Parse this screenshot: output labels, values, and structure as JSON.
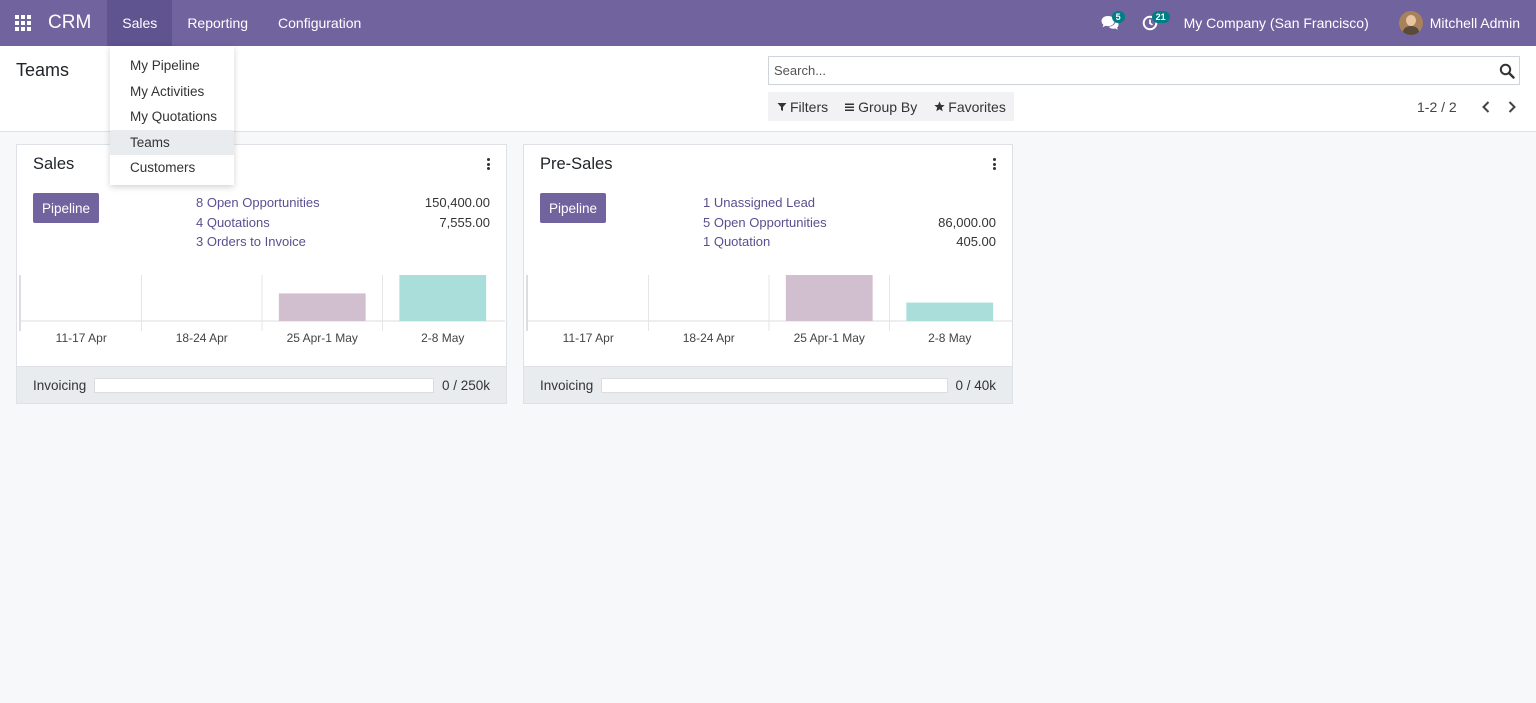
{
  "navbar": {
    "app_name": "CRM",
    "menu": [
      "Sales",
      "Reporting",
      "Configuration"
    ],
    "active_menu": 0,
    "messages_count": "5",
    "activities_count": "21",
    "company": "My Company (San Francisco)",
    "user": "Mitchell Admin"
  },
  "sales_dropdown": {
    "items": [
      "My Pipeline",
      "My Activities",
      "My Quotations",
      "Teams",
      "Customers"
    ],
    "active_index": 3
  },
  "control_panel": {
    "title": "Teams",
    "search_placeholder": "Search...",
    "filters_label": "Filters",
    "group_by_label": "Group By",
    "favorites_label": "Favorites",
    "pager": "1-2 / 2"
  },
  "teams": [
    {
      "name": "Sales",
      "button_label": "Pipeline",
      "stats": [
        {
          "label": "8 Open Opportunities",
          "value": "150,400.00"
        },
        {
          "label": "4 Quotations",
          "value": "7,555.00"
        },
        {
          "label": "3 Orders to Invoice",
          "value": ""
        }
      ],
      "chart_data": {
        "type": "bar",
        "categories": [
          "11-17 Apr",
          "18-24 Apr",
          "25 Apr-1 May",
          "2-8 May"
        ],
        "values": [
          0,
          0,
          27,
          45
        ],
        "colors": [
          "#d1bfcf",
          "#d1bfcf",
          "#d1bfcf",
          "#a9dedb"
        ]
      },
      "invoicing": {
        "label": "Invoicing",
        "text": "0 / 250k",
        "progress": 0
      }
    },
    {
      "name": "Pre-Sales",
      "button_label": "Pipeline",
      "stats": [
        {
          "label": "1 Unassigned Lead",
          "value": ""
        },
        {
          "label": "5 Open Opportunities",
          "value": "86,000.00"
        },
        {
          "label": "1 Quotation",
          "value": "405.00"
        }
      ],
      "chart_data": {
        "type": "bar",
        "categories": [
          "11-17 Apr",
          "18-24 Apr",
          "25 Apr-1 May",
          "2-8 May"
        ],
        "values": [
          0,
          0,
          45,
          18
        ],
        "colors": [
          "#d1bfcf",
          "#d1bfcf",
          "#d1bfcf",
          "#a9dedb"
        ]
      },
      "invoicing": {
        "label": "Invoicing",
        "text": "0 / 40k",
        "progress": 0
      }
    }
  ]
}
